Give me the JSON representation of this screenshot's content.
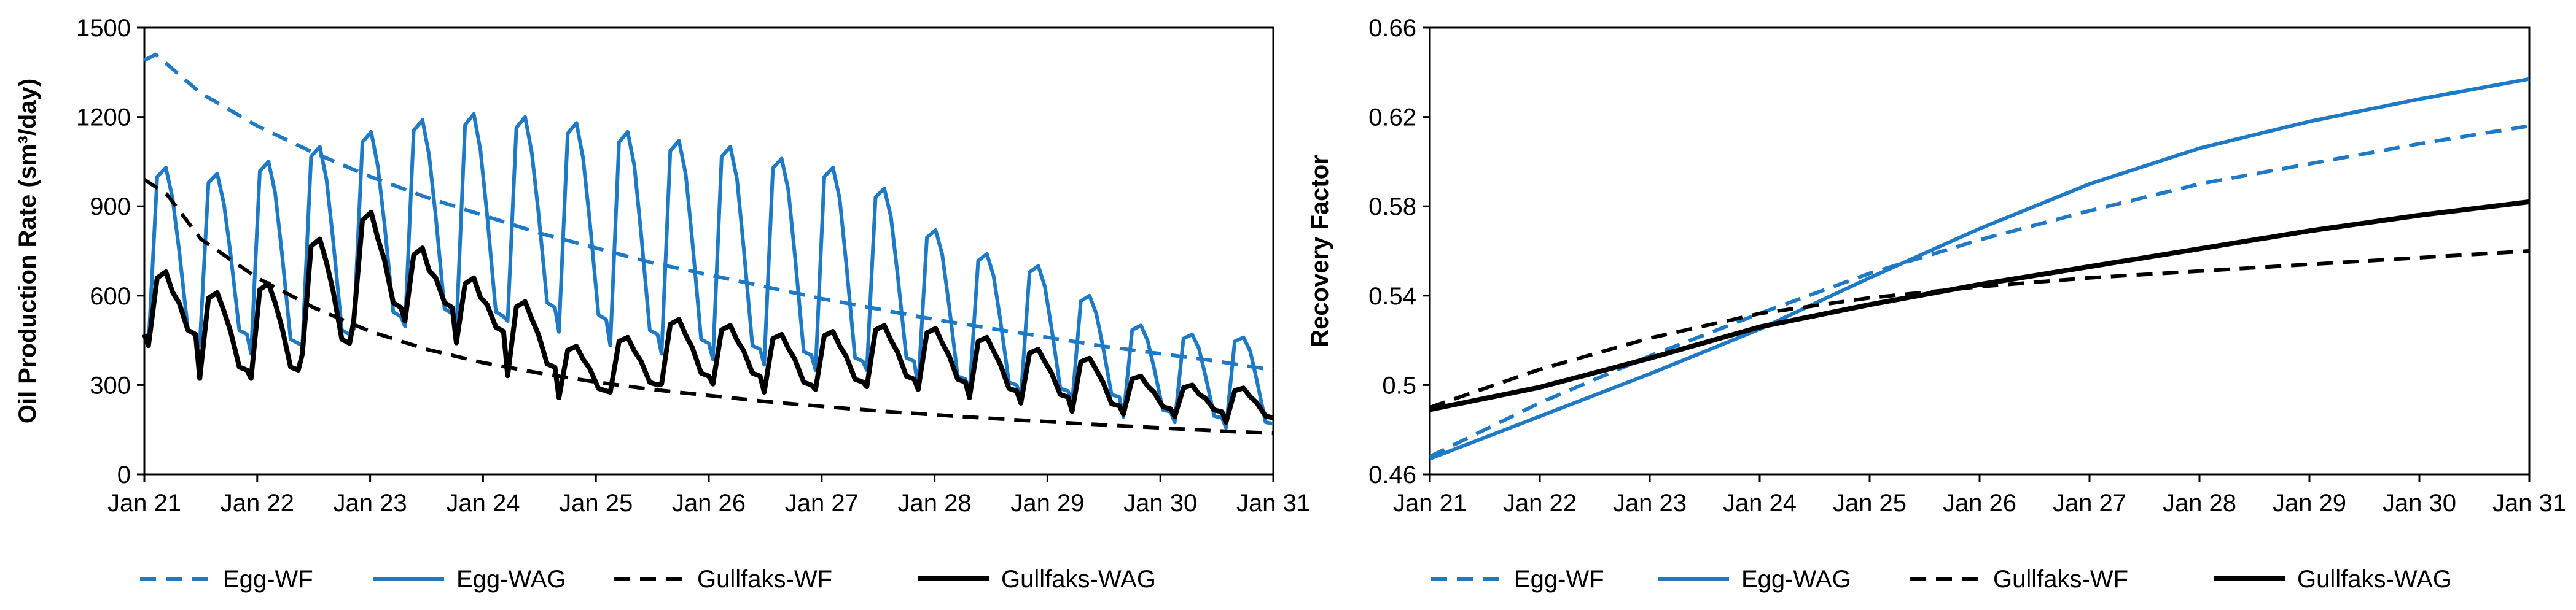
{
  "colors": {
    "egg": "#1f7ac6",
    "gullfaks": "#000000"
  },
  "chart_data": [
    {
      "type": "line",
      "title": "",
      "xlabel": "",
      "ylabel": "Oil Production Rate (sm³/day)",
      "ylim": [
        0,
        1500
      ],
      "yticks": [
        "0",
        "300",
        "600",
        "900",
        "1200",
        "1500"
      ],
      "xticks": [
        "Jan 21",
        "Jan 22",
        "Jan 23",
        "Jan 24",
        "Jan 25",
        "Jan 26",
        "Jan 27",
        "Jan 28",
        "Jan 29",
        "Jan 30",
        "Jan 31"
      ],
      "xlim": [
        0,
        10
      ],
      "legend": "bottom",
      "series": [
        {
          "name": "Egg-WF",
          "style": "dashed",
          "color": "egg",
          "x": [
            0,
            0.1,
            0.5,
            1,
            1.5,
            2,
            2.5,
            3,
            3.5,
            4,
            4.5,
            5,
            5.5,
            6,
            6.5,
            7,
            7.5,
            8,
            8.5,
            9,
            9.5,
            10
          ],
          "y": [
            1390,
            1410,
            1280,
            1170,
            1080,
            1000,
            930,
            870,
            810,
            760,
            710,
            670,
            630,
            590,
            555,
            520,
            490,
            460,
            430,
            405,
            380,
            350
          ]
        },
        {
          "name": "Egg-WAG",
          "style": "solid",
          "color": "egg",
          "cycle": "wag",
          "peaks": [
            1030,
            1010,
            1050,
            1100,
            1150,
            1190,
            1210,
            1200,
            1180,
            1150,
            1120,
            1100,
            1060,
            1030,
            960,
            820,
            740,
            700,
            600,
            500,
            470,
            460
          ],
          "troughs": [
            470,
            470,
            440,
            470,
            530,
            540,
            530,
            560,
            520,
            470,
            440,
            420,
            400,
            380,
            380,
            320,
            300,
            280,
            260,
            210,
            190,
            170
          ]
        },
        {
          "name": "Gullfaks-WF",
          "style": "dashed",
          "color": "gullfaks",
          "x": [
            0,
            0.2,
            0.5,
            1,
            1.5,
            2,
            2.5,
            3,
            3.5,
            4,
            4.5,
            5,
            5.5,
            6,
            6.5,
            7,
            7.5,
            8,
            8.5,
            9,
            9.5,
            10
          ],
          "y": [
            990,
            940,
            790,
            660,
            560,
            480,
            420,
            375,
            340,
            310,
            285,
            265,
            245,
            228,
            213,
            200,
            188,
            177,
            166,
            156,
            146,
            138
          ]
        },
        {
          "name": "Gullfaks-WAG",
          "style": "solid",
          "color": "gullfaks",
          "cycle": "wag",
          "peaks": [
            680,
            610,
            640,
            790,
            880,
            760,
            660,
            580,
            430,
            460,
            520,
            500,
            470,
            480,
            500,
            490,
            460,
            420,
            390,
            330,
            300,
            290
          ],
          "troughs": [
            470,
            350,
            350,
            440,
            560,
            560,
            480,
            360,
            280,
            300,
            330,
            330,
            300,
            310,
            320,
            310,
            280,
            260,
            230,
            220,
            210,
            190
          ]
        }
      ]
    },
    {
      "type": "line",
      "title": "",
      "xlabel": "",
      "ylabel": "Recovery Factor",
      "ylim": [
        0.46,
        0.66
      ],
      "yticks": [
        "0.46",
        "0.5",
        "0.54",
        "0.58",
        "0.62",
        "0.66"
      ],
      "xticks": [
        "Jan 21",
        "Jan 22",
        "Jan 23",
        "Jan 24",
        "Jan 25",
        "Jan 26",
        "Jan 27",
        "Jan 28",
        "Jan 29",
        "Jan 30",
        "Jan 31"
      ],
      "xlim": [
        0,
        10
      ],
      "legend": "bottom",
      "series": [
        {
          "name": "Egg-WF",
          "style": "dashed",
          "color": "egg",
          "x": [
            0,
            1,
            2,
            3,
            4,
            5,
            6,
            7,
            8,
            9,
            10
          ],
          "y": [
            0.468,
            0.492,
            0.513,
            0.532,
            0.55,
            0.565,
            0.578,
            0.59,
            0.599,
            0.608,
            0.616
          ]
        },
        {
          "name": "Egg-WAG",
          "style": "solid",
          "color": "egg",
          "x": [
            0,
            1,
            2,
            3,
            4,
            5,
            6,
            7,
            8,
            9,
            10
          ],
          "y": [
            0.467,
            0.486,
            0.505,
            0.525,
            0.548,
            0.57,
            0.59,
            0.606,
            0.618,
            0.628,
            0.637
          ]
        },
        {
          "name": "Gullfaks-WF",
          "style": "dashed",
          "color": "gullfaks",
          "x": [
            0,
            1,
            2,
            3,
            4,
            5,
            6,
            7,
            8,
            9,
            10
          ],
          "y": [
            0.49,
            0.507,
            0.521,
            0.532,
            0.539,
            0.544,
            0.548,
            0.551,
            0.554,
            0.557,
            0.56
          ]
        },
        {
          "name": "Gullfaks-WAG",
          "style": "solid",
          "color": "gullfaks",
          "x": [
            0,
            1,
            2,
            3,
            4,
            5,
            6,
            7,
            8,
            9,
            10
          ],
          "y": [
            0.489,
            0.499,
            0.512,
            0.526,
            0.536,
            0.545,
            0.553,
            0.561,
            0.569,
            0.576,
            0.582
          ]
        }
      ]
    }
  ]
}
